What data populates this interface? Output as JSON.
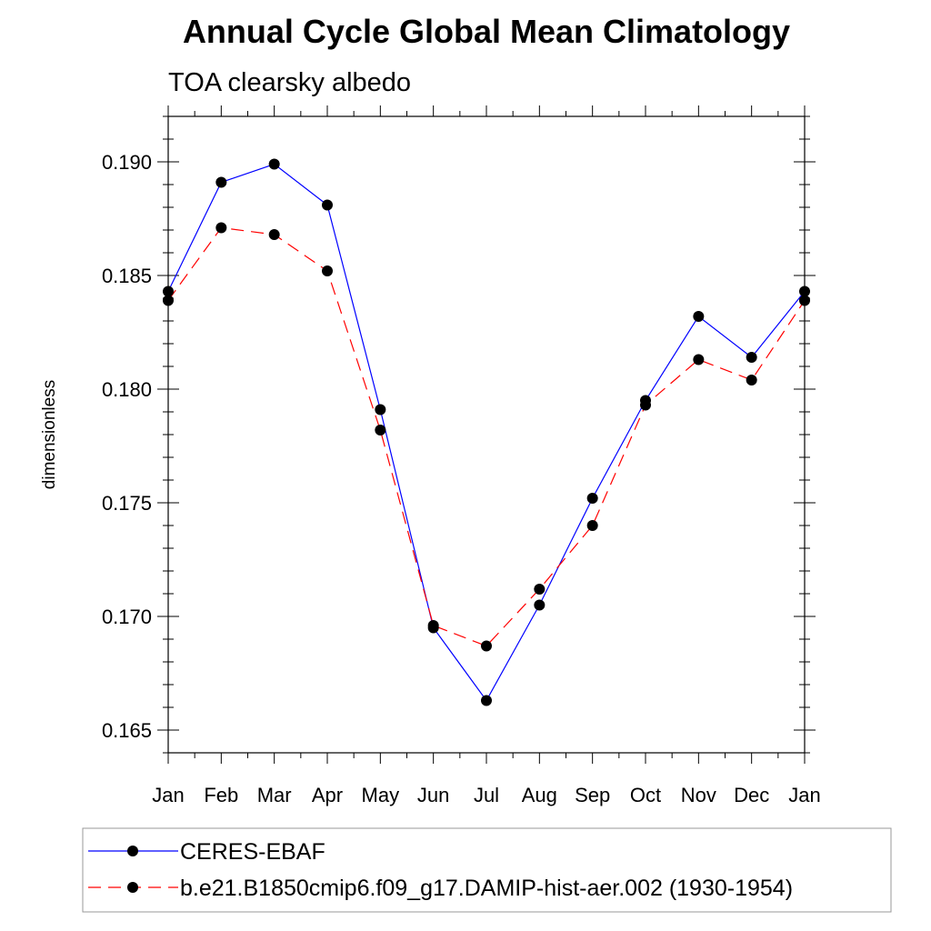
{
  "chart_data": {
    "type": "line",
    "title": "Annual Cycle Global Mean Climatology",
    "subtitle": "TOA clearsky albedo",
    "xlabel": "",
    "ylabel": "dimensionless",
    "categories": [
      "Jan",
      "Feb",
      "Mar",
      "Apr",
      "May",
      "Jun",
      "Jul",
      "Aug",
      "Sep",
      "Oct",
      "Nov",
      "Dec",
      "Jan"
    ],
    "ylim": [
      0.164,
      0.192
    ],
    "yticks": [
      "0.165",
      "0.170",
      "0.175",
      "0.180",
      "0.185",
      "0.190"
    ],
    "grid": false,
    "legend_position": "bottom",
    "series": [
      {
        "name": "CERES-EBAF",
        "color": "#0000ff",
        "line_style": "solid",
        "marker": "filled-circle",
        "values": [
          0.1843,
          0.1891,
          0.1899,
          0.1881,
          0.1791,
          0.1695,
          0.1663,
          0.1705,
          0.1752,
          0.1795,
          0.1832,
          0.1814,
          0.1843
        ]
      },
      {
        "name": "b.e21.B1850cmip6.f09_g17.DAMIP-hist-aer.002 (1930-1954)",
        "color": "#ff0000",
        "line_style": "dashed",
        "marker": "filled-circle",
        "values": [
          0.1839,
          0.1871,
          0.1868,
          0.1852,
          0.1782,
          0.1696,
          0.1687,
          0.1712,
          0.174,
          0.1793,
          0.1813,
          0.1804,
          0.1839
        ]
      }
    ]
  }
}
